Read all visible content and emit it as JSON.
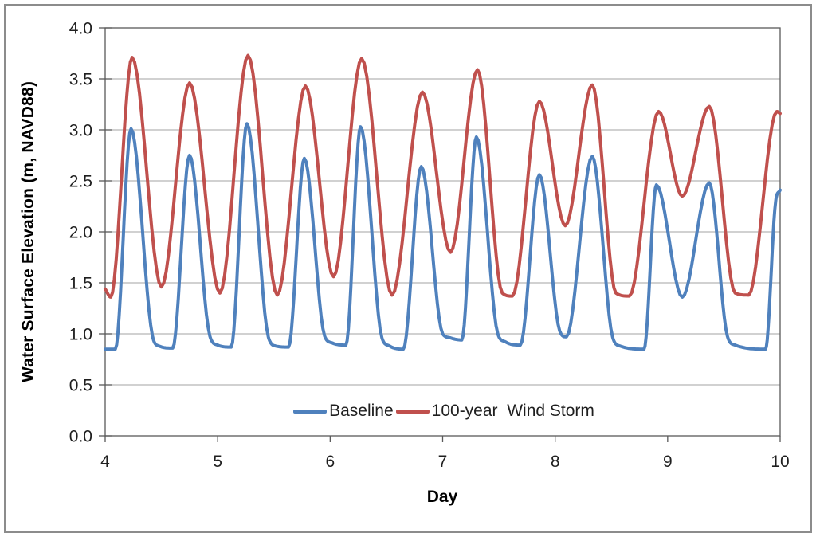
{
  "chart_data": {
    "type": "line",
    "title": "",
    "xlabel": "Day",
    "ylabel": "Water Surface Elevation (m, NAVD88)",
    "xlim": [
      4,
      10
    ],
    "ylim": [
      0.0,
      4.0
    ],
    "x_ticks": [
      "4",
      "5",
      "6",
      "7",
      "8",
      "9",
      "10"
    ],
    "y_ticks": [
      "0.0",
      "0.5",
      "1.0",
      "1.5",
      "2.0",
      "2.5",
      "3.0",
      "3.5",
      "4.0"
    ],
    "grid": "horizontal-major",
    "legend_position": "inside-bottom-center",
    "colors": {
      "baseline": "#4F81BD",
      "storm": "#C0504D",
      "gridline": "#A3A3A3",
      "axis": "#595959",
      "text": "#1F1F1F",
      "frame_border": "#8C8C8C",
      "background": "#FFFFFF"
    },
    "series": [
      {
        "name": "Baseline",
        "color": "#4F81BD",
        "points": [
          [
            4.0,
            0.85
          ],
          [
            4.09,
            0.85
          ],
          [
            4.23,
            3.01
          ],
          [
            4.42,
            0.98
          ],
          [
            4.48,
            0.88
          ],
          [
            4.6,
            0.86
          ],
          [
            4.75,
            2.75
          ],
          [
            4.93,
            0.98
          ],
          [
            5.0,
            0.89
          ],
          [
            5.12,
            0.87
          ],
          [
            5.26,
            3.06
          ],
          [
            5.45,
            0.97
          ],
          [
            5.52,
            0.88
          ],
          [
            5.63,
            0.87
          ],
          [
            5.77,
            2.72
          ],
          [
            5.95,
            0.98
          ],
          [
            6.02,
            0.91
          ],
          [
            6.14,
            0.89
          ],
          [
            6.27,
            3.03
          ],
          [
            6.46,
            0.96
          ],
          [
            6.53,
            0.88
          ],
          [
            6.65,
            0.85
          ],
          [
            6.81,
            2.64
          ],
          [
            7.0,
            1.0
          ],
          [
            7.07,
            0.96
          ],
          [
            7.17,
            0.94
          ],
          [
            7.3,
            2.93
          ],
          [
            7.49,
            1.0
          ],
          [
            7.56,
            0.92
          ],
          [
            7.69,
            0.89
          ],
          [
            7.86,
            2.56
          ],
          [
            8.04,
            1.03
          ],
          [
            8.1,
            0.97
          ],
          [
            8.33,
            2.74
          ],
          [
            8.51,
            0.97
          ],
          [
            8.58,
            0.88
          ],
          [
            8.79,
            0.85
          ],
          [
            8.9,
            2.46
          ],
          [
            9.13,
            1.36
          ],
          [
            9.37,
            2.48
          ],
          [
            9.53,
            0.98
          ],
          [
            9.6,
            0.89
          ],
          [
            9.87,
            0.85
          ],
          [
            9.96,
            2.3
          ],
          [
            10.0,
            2.41
          ]
        ]
      },
      {
        "name": "100-year  Wind Storm",
        "color": "#C0504D",
        "points": [
          [
            4.0,
            1.44
          ],
          [
            4.05,
            1.36
          ],
          [
            4.24,
            3.71
          ],
          [
            4.5,
            1.46
          ],
          [
            4.75,
            3.46
          ],
          [
            5.02,
            1.4
          ],
          [
            5.27,
            3.73
          ],
          [
            5.53,
            1.38
          ],
          [
            5.78,
            3.43
          ],
          [
            6.03,
            1.56
          ],
          [
            6.28,
            3.7
          ],
          [
            6.55,
            1.38
          ],
          [
            6.82,
            3.37
          ],
          [
            7.07,
            1.8
          ],
          [
            7.31,
            3.59
          ],
          [
            7.53,
            1.4
          ],
          [
            7.62,
            1.37
          ],
          [
            7.86,
            3.28
          ],
          [
            8.09,
            2.06
          ],
          [
            8.33,
            3.44
          ],
          [
            8.54,
            1.4
          ],
          [
            8.66,
            1.37
          ],
          [
            8.92,
            3.18
          ],
          [
            9.13,
            2.35
          ],
          [
            9.37,
            3.23
          ],
          [
            9.6,
            1.4
          ],
          [
            9.72,
            1.38
          ],
          [
            9.97,
            3.18
          ],
          [
            10.0,
            3.16
          ]
        ]
      }
    ]
  }
}
